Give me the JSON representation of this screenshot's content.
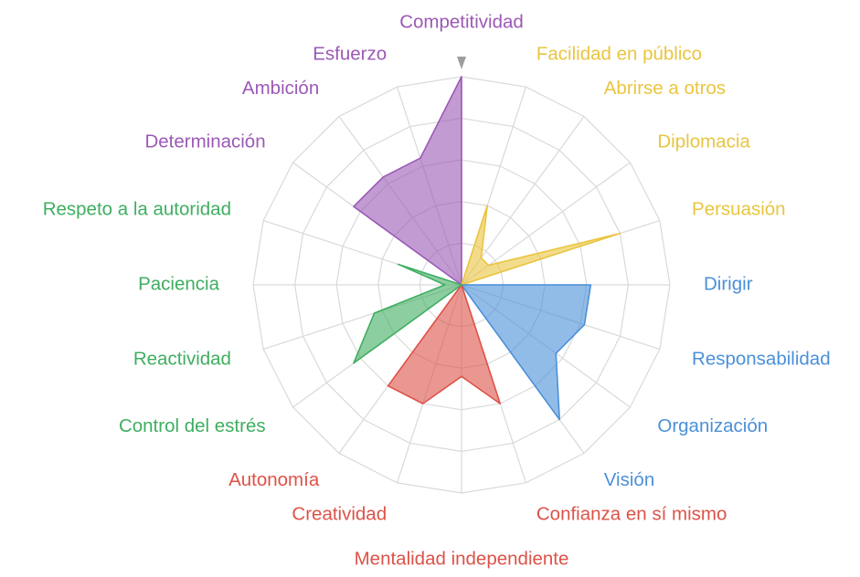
{
  "chart_data": {
    "type": "radar",
    "max_value": 5,
    "rings": 5,
    "grid": true,
    "colors": {
      "purple": "#9b59b6",
      "yellow": "#e9c53f",
      "blue": "#4a90d9",
      "red": "#dd5248",
      "green": "#3fae60",
      "grid": "#d9d9d9",
      "marker": "#9e9e9e"
    },
    "axes": [
      {
        "label": "Competitividad",
        "value": 5.0,
        "group": "purple"
      },
      {
        "label": "Facilidad en público",
        "value": 2.0,
        "group": "yellow"
      },
      {
        "label": "Abrirse a otros",
        "value": 0.8,
        "group": "yellow"
      },
      {
        "label": "Diplomacia",
        "value": 0.8,
        "group": "yellow"
      },
      {
        "label": "Persuasión",
        "value": 4.0,
        "group": "yellow"
      },
      {
        "label": "Dirigir",
        "value": 3.1,
        "group": "blue"
      },
      {
        "label": "Responsabilidad",
        "value": 3.1,
        "group": "blue"
      },
      {
        "label": "Organización",
        "value": 2.8,
        "group": "blue"
      },
      {
        "label": "Visión",
        "value": 4.0,
        "group": "blue"
      },
      {
        "label": "Confianza en sí mismo",
        "value": 3.0,
        "group": "red"
      },
      {
        "label": "Mentalidad independiente",
        "value": 2.2,
        "group": "red"
      },
      {
        "label": "Creatividad",
        "value": 3.0,
        "group": "red"
      },
      {
        "label": "Autonomía",
        "value": 3.0,
        "group": "red"
      },
      {
        "label": "Control del estrés",
        "value": 3.2,
        "group": "green"
      },
      {
        "label": "Reactividad",
        "value": 2.2,
        "group": "green"
      },
      {
        "label": "Paciencia",
        "value": 0.4,
        "group": "green"
      },
      {
        "label": "Respeto a la autoridad",
        "value": 1.6,
        "group": "green"
      },
      {
        "label": "Determinación",
        "value": 3.2,
        "group": "purple"
      },
      {
        "label": "Ambición",
        "value": 3.2,
        "group": "purple"
      },
      {
        "label": "Esfuerzo",
        "value": 3.2,
        "group": "purple"
      }
    ]
  }
}
